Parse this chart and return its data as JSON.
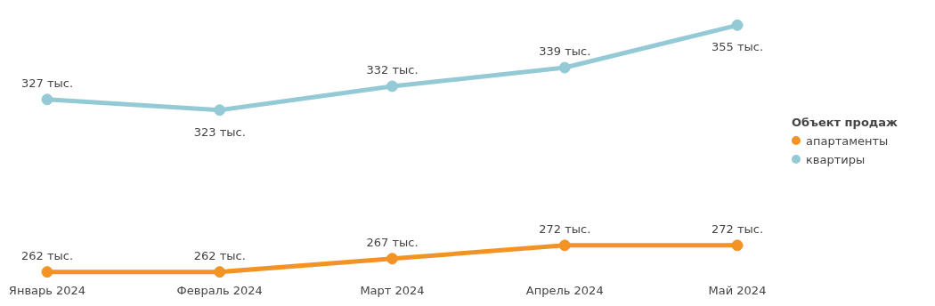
{
  "chart_data": {
    "type": "line",
    "categories": [
      "Январь 2024",
      "Февраль 2024",
      "Март 2024",
      "Апрель 2024",
      "Май 2024"
    ],
    "legend_title": "Объект продаж",
    "legend": "right",
    "marker": "circle",
    "line_style": "solid",
    "series": [
      {
        "name": "апартаменты",
        "color": "#f39325",
        "values": [
          262,
          262,
          267,
          272,
          272
        ],
        "value_labels": [
          "262 тыс.",
          "262 тыс.",
          "267 тыс.",
          "272 тыс.",
          "272 тыс."
        ]
      },
      {
        "name": "квартиры",
        "color": "#94cad5",
        "values": [
          327,
          323,
          332,
          339,
          355
        ],
        "value_labels": [
          "327 тыс.",
          "323 тыс.",
          "332 тыс.",
          "339 тыс.",
          "355 тыс."
        ]
      }
    ]
  }
}
